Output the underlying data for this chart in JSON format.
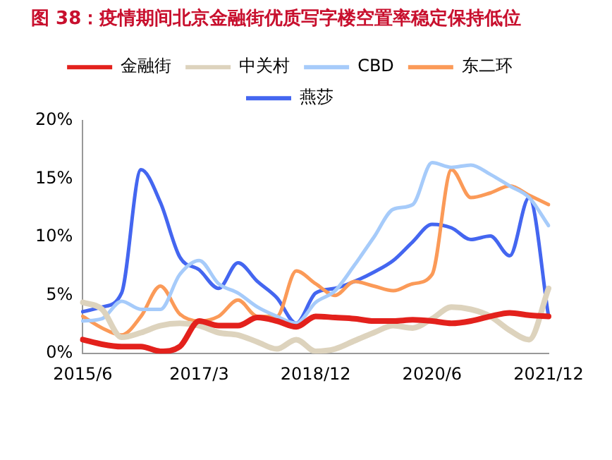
{
  "chart_data": {
    "type": "line",
    "title": "图 38：疫情期间北京金融街优质写字楼空置率稳定保持低位",
    "categories": [
      "2015/6",
      null,
      null,
      null,
      null,
      null,
      "2017/3",
      null,
      null,
      null,
      null,
      null,
      "2018/12",
      null,
      null,
      null,
      null,
      null,
      "2020/6",
      null,
      null,
      null,
      null,
      null,
      "2021/12"
    ],
    "series": [
      {
        "name": "金融街",
        "color": "#e3211c",
        "values": [
          1.2,
          0.8,
          0.6,
          0.6,
          0.2,
          0.6,
          2.8,
          2.4,
          2.4,
          3.1,
          2.8,
          2.3,
          3.2,
          3.1,
          3.0,
          2.8,
          2.8,
          2.9,
          2.8,
          2.6,
          2.8,
          3.2,
          3.5,
          3.3,
          3.2
        ]
      },
      {
        "name": "中关村",
        "color": "#ddd3bd",
        "values": [
          4.4,
          3.8,
          1.4,
          1.8,
          2.4,
          2.6,
          2.4,
          1.8,
          1.6,
          1.0,
          0.4,
          1.2,
          0.2,
          0.4,
          1.1,
          1.8,
          2.4,
          2.2,
          3.0,
          4.0,
          3.8,
          3.2,
          2.0,
          1.2,
          5.6
        ]
      },
      {
        "name": "CBD",
        "color": "#a6cbfa",
        "values": [
          2.8,
          3.0,
          4.5,
          3.8,
          3.8,
          6.8,
          8.0,
          6.0,
          5.2,
          4.0,
          3.2,
          2.6,
          4.4,
          5.4,
          7.6,
          10.0,
          12.4,
          12.8,
          16.4,
          16.0,
          16.2,
          15.4,
          14.4,
          13.4,
          11.0
        ]
      },
      {
        "name": "东二环",
        "color": "#fb9a58",
        "values": [
          3.2,
          2.2,
          1.6,
          3.2,
          5.8,
          3.4,
          2.8,
          3.2,
          4.6,
          3.2,
          3.2,
          7.1,
          6.0,
          5.0,
          6.2,
          5.8,
          5.4,
          6.0,
          6.8,
          15.8,
          13.4,
          13.8,
          14.4,
          13.6,
          12.8
        ]
      },
      {
        "name": "燕莎",
        "color": "#4466f0",
        "values": [
          3.6,
          4.0,
          5.2,
          15.8,
          13.0,
          8.3,
          7.2,
          5.6,
          7.8,
          6.2,
          4.8,
          2.6,
          5.2,
          5.6,
          6.2,
          7.0,
          8.0,
          9.6,
          11.1,
          10.8,
          9.8,
          10.1,
          8.4,
          13.4,
          3.2
        ]
      }
    ],
    "ylim": [
      0,
      20
    ],
    "yticks": [
      {
        "value": 0,
        "label": "0%"
      },
      {
        "value": 5,
        "label": "5%"
      },
      {
        "value": 10,
        "label": "10%"
      },
      {
        "value": 15,
        "label": "15%"
      },
      {
        "value": 20,
        "label": "20%"
      }
    ],
    "grid": false,
    "legend": "top",
    "marker": "none",
    "line_style": "solid"
  }
}
